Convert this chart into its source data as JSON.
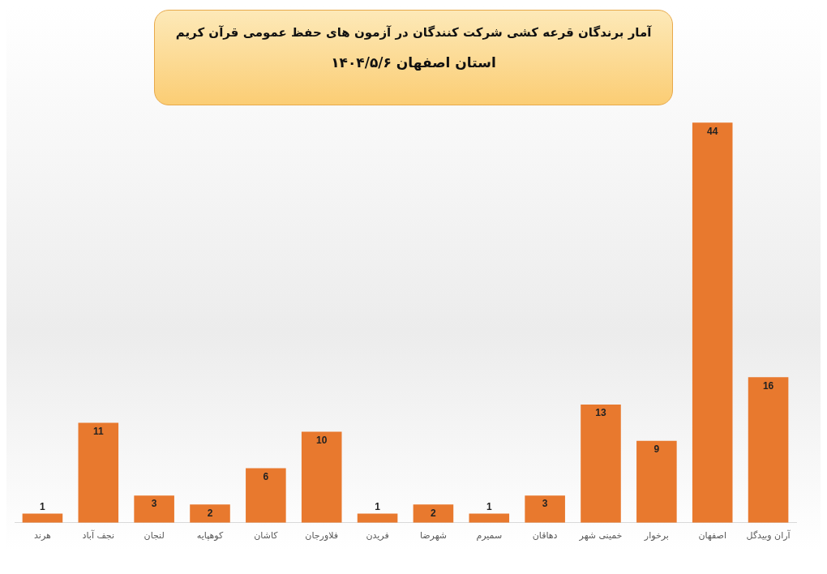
{
  "chart_data": {
    "type": "bar",
    "title": "آمار برندگان قرعه کشی شرکت کنندگان در آزمون های حفظ عمومی قرآن کریم",
    "subtitle": "استان اصفهان  ۱۴۰۴/۵/۶",
    "categories": [
      "هرند",
      "نجف آباد",
      "لنجان",
      "کوهپایه",
      "کاشان",
      "فلاورجان",
      "فریدن",
      "شهرضا",
      "سمیرم",
      "دهاقان",
      "خمینی شهر",
      "برخوار",
      "اصفهان",
      "آران وبیدگل"
    ],
    "values": [
      1,
      11,
      3,
      2,
      6,
      10,
      1,
      2,
      1,
      3,
      13,
      9,
      44,
      16
    ],
    "color": "#e8792e",
    "data_labels": true,
    "grid": false,
    "legend": false
  }
}
